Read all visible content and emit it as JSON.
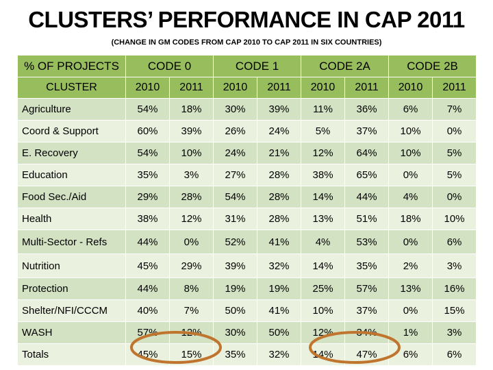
{
  "title": "CLUSTERS’ PERFORMANCE IN CAP 2011",
  "subtitle": "(CHANGE IN GM CODES FROM CAP 2010 TO CAP 2011 IN SIX COUNTRIES)",
  "header": {
    "corner_label": "% OF PROJECTS",
    "row_label": "CLUSTER",
    "codes": [
      "CODE 0",
      "CODE 1",
      "CODE 2A",
      "CODE 2B"
    ],
    "years": [
      "2010",
      "2011"
    ]
  },
  "rows": [
    {
      "cluster": "Agriculture",
      "values": [
        "54%",
        "18%",
        "30%",
        "39%",
        "11%",
        "36%",
        "6%",
        "7%"
      ]
    },
    {
      "cluster": "Coord & Support",
      "values": [
        "60%",
        "39%",
        "26%",
        "24%",
        "5%",
        "37%",
        "10%",
        "0%"
      ]
    },
    {
      "cluster": "E. Recovery",
      "values": [
        "54%",
        "10%",
        "24%",
        "21%",
        "12%",
        "64%",
        "10%",
        "5%"
      ]
    },
    {
      "cluster": "Education",
      "values": [
        "35%",
        "3%",
        "27%",
        "28%",
        "38%",
        "65%",
        "0%",
        "5%"
      ]
    },
    {
      "cluster": "Food Sec./Aid",
      "values": [
        "29%",
        "28%",
        "54%",
        "28%",
        "14%",
        "44%",
        "4%",
        "0%"
      ]
    },
    {
      "cluster": "Health",
      "values": [
        "38%",
        "12%",
        "31%",
        "28%",
        "13%",
        "51%",
        "18%",
        "10%"
      ]
    },
    {
      "cluster": "Multi-Sector - Refs",
      "values": [
        "44%",
        "0%",
        "52%",
        "41%",
        "4%",
        "53%",
        "0%",
        "6%"
      ]
    },
    {
      "cluster": "Nutrition",
      "values": [
        "45%",
        "29%",
        "39%",
        "32%",
        "14%",
        "35%",
        "2%",
        "3%"
      ]
    },
    {
      "cluster": "Protection",
      "values": [
        "44%",
        "8%",
        "19%",
        "19%",
        "25%",
        "57%",
        "13%",
        "16%"
      ]
    },
    {
      "cluster": "Shelter/NFI/CCCM",
      "values": [
        "40%",
        "7%",
        "50%",
        "41%",
        "10%",
        "37%",
        "0%",
        "15%"
      ]
    },
    {
      "cluster": "WASH",
      "values": [
        "57%",
        "12%",
        "30%",
        "50%",
        "12%",
        "34%",
        "1%",
        "3%"
      ]
    },
    {
      "cluster": "Totals",
      "values": [
        "45%",
        "15%",
        "35%",
        "32%",
        "14%",
        "47%",
        "6%",
        "6%"
      ]
    }
  ],
  "colors": {
    "header_bg": "#97bd5c",
    "row_dark": "#d3e2c3",
    "row_light": "#eaf1de",
    "highlight_ring": "#c0752e"
  }
}
